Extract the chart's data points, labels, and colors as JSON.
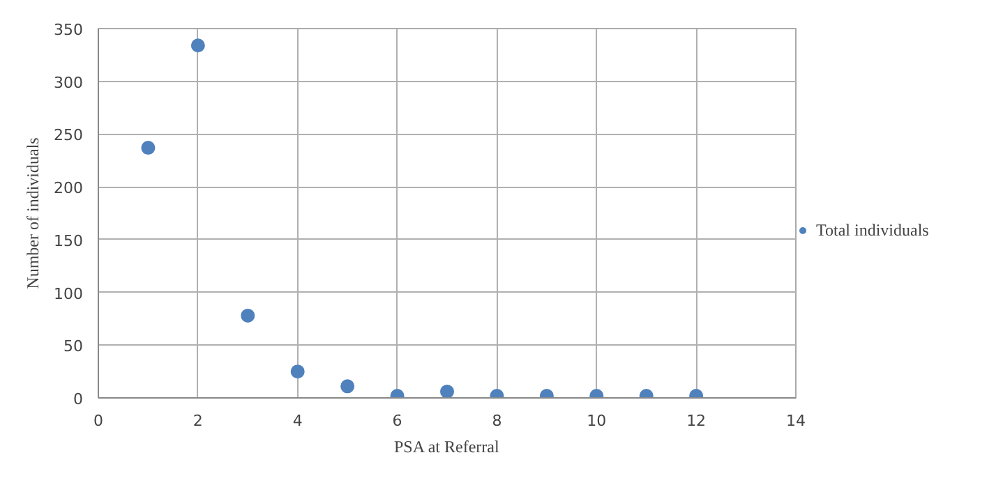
{
  "chart_data": {
    "type": "scatter",
    "xlabel": "PSA at Referral",
    "ylabel": "Number of individuals",
    "x": [
      1,
      2,
      3,
      4,
      5,
      6,
      7,
      8,
      9,
      10,
      11,
      12
    ],
    "series": [
      {
        "name": "Total individuals",
        "color": "#4f81bd",
        "values": [
          237,
          334,
          78,
          25,
          11,
          2,
          6,
          2,
          2,
          2,
          2,
          2
        ]
      }
    ],
    "xlim": [
      0,
      14
    ],
    "xticks": [
      0,
      2,
      4,
      6,
      8,
      10,
      12,
      14
    ],
    "ylim": [
      0,
      350
    ],
    "yticks": [
      0,
      50,
      100,
      150,
      200,
      250,
      300,
      350
    ],
    "grid": true,
    "legend": "right",
    "marker": "circle"
  }
}
